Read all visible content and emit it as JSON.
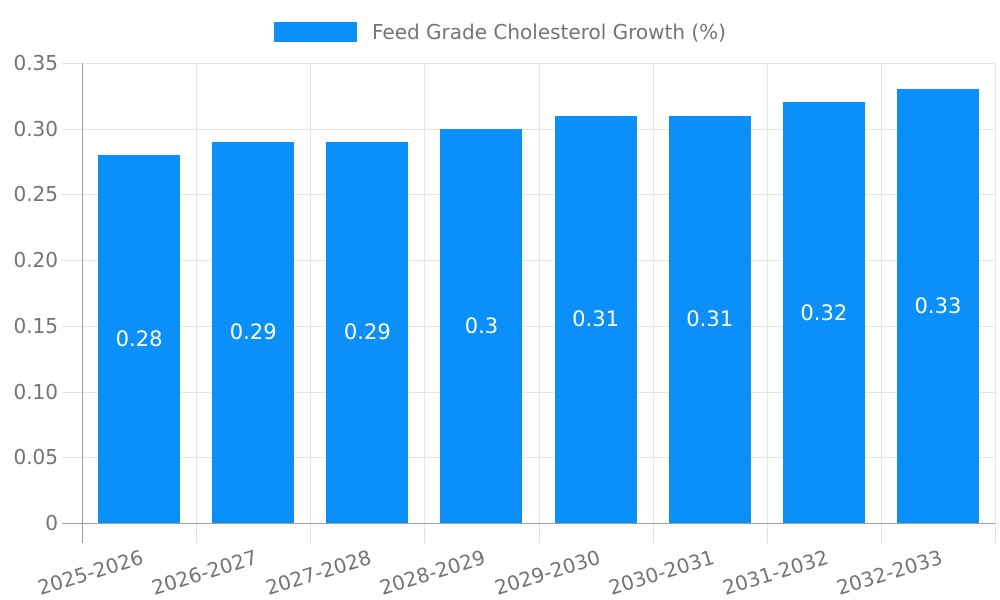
{
  "legend": {
    "label": "Feed Grade Cholesterol Growth (%)"
  },
  "colors": {
    "bar": "#0A90F8",
    "axis": "#9E9E9E",
    "grid": "#E6E6E6",
    "tick": "#E2E2E2",
    "text": "#757575",
    "value_label": "#FFFFFF",
    "background": "#FFFFFF"
  },
  "chart_data": {
    "type": "bar",
    "title": "",
    "legend_entries": [
      "Feed Grade Cholesterol Growth (%)"
    ],
    "legend_position": "top-center",
    "categories": [
      "2025-2026",
      "2026-2027",
      "2027-2028",
      "2028-2029",
      "2029-2030",
      "2030-2031",
      "2031-2032",
      "2032-2033"
    ],
    "values": [
      0.28,
      0.29,
      0.29,
      0.3,
      0.31,
      0.31,
      0.32,
      0.33
    ],
    "bar_labels": [
      "0.28",
      "0.29",
      "0.29",
      "0.3",
      "0.31",
      "0.31",
      "0.32",
      "0.33"
    ],
    "xlabel": "",
    "ylabel": "",
    "ylim": [
      0,
      0.35
    ],
    "yticks": [
      0,
      0.05,
      0.1,
      0.15,
      0.2,
      0.25,
      0.3,
      0.35
    ],
    "ytick_labels": [
      "0",
      "0.05",
      "0.10",
      "0.15",
      "0.20",
      "0.25",
      "0.30",
      "0.35"
    ],
    "grid": true,
    "x_label_rotation_deg": -17
  }
}
